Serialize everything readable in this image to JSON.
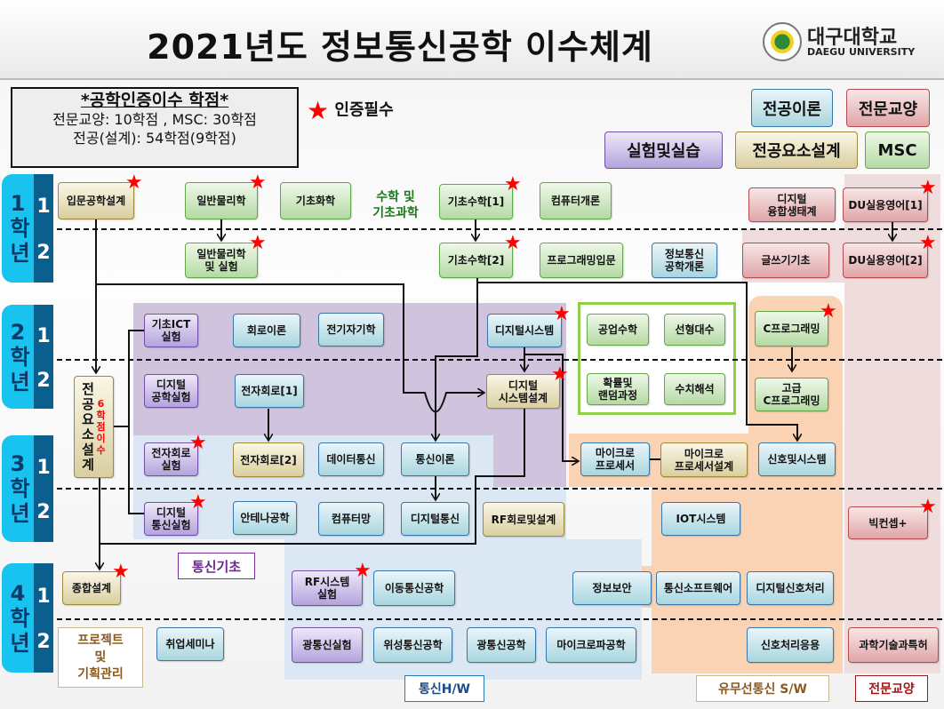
{
  "title": "2021년도 정보통신공학 이수체계",
  "logo": {
    "name_ko": "대구대학교",
    "name_en": "DAEGU UNIVERSITY"
  },
  "credits": {
    "heading": "*공학인증이수 학점*",
    "line1": "전문교양: 10학점 , MSC: 30학점",
    "line2": "전공(설계): 54학점(9학점)"
  },
  "star_legend": {
    "icon": "red-star-icon",
    "label": "인증필수"
  },
  "legend": {
    "theory": "전공이론",
    "liberal": "전문교양",
    "lab": "실험및실습",
    "design": "전공요소설계",
    "msc": "MSC"
  },
  "colors": {
    "theory": "#a9d6de",
    "lab": "#b3a3dc",
    "design": "#d9cfa0",
    "msc": "#b5daa4",
    "liberal": "#dfa6a8",
    "star": "#ff0000",
    "year_bar": "#18c3f0",
    "semester_bar": "#0b5f8e"
  },
  "years": [
    {
      "year": "1",
      "unit": "학년",
      "semesters": [
        "1",
        "2"
      ]
    },
    {
      "year": "2",
      "unit": "학년",
      "semesters": [
        "1",
        "2"
      ]
    },
    {
      "year": "3",
      "unit": "학년",
      "semesters": [
        "1",
        "2"
      ]
    },
    {
      "year": "4",
      "unit": "학년",
      "semesters": [
        "1",
        "2"
      ]
    }
  ],
  "labels": {
    "math_science": "수학 및\n기초과학",
    "design_elements": "전공요소설계",
    "design_credits": "6학점이수",
    "comm_basics": "통신기초",
    "project": "프로젝트\n및\n기획관리",
    "comm_hw": "통신H/W",
    "comm_sw": "유무선통신 S/W",
    "liberal": "전문교양"
  },
  "courses": [
    {
      "label": "입문공학설계",
      "type": "design",
      "required": true
    },
    {
      "label": "일반물리학",
      "type": "msc",
      "required": true
    },
    {
      "label": "기초화학",
      "type": "msc",
      "required": false
    },
    {
      "label": "기초수학[1]",
      "type": "msc",
      "required": true
    },
    {
      "label": "컴퓨터개론",
      "type": "msc",
      "required": false
    },
    {
      "label": "디지털\n융합생태계",
      "type": "liberal",
      "required": false
    },
    {
      "label": "DU실용영어[1]",
      "type": "liberal",
      "required": true
    },
    {
      "label": "일반물리학\n및 실험",
      "type": "msc",
      "required": true
    },
    {
      "label": "기초수학[2]",
      "type": "msc",
      "required": true
    },
    {
      "label": "프로그래밍입문",
      "type": "msc",
      "required": false
    },
    {
      "label": "정보통신\n공학개론",
      "type": "theory",
      "required": false
    },
    {
      "label": "글쓰기기초",
      "type": "liberal",
      "required": false
    },
    {
      "label": "DU실용영어[2]",
      "type": "liberal",
      "required": true
    },
    {
      "label": "기초ICT\n실험",
      "type": "lab",
      "required": false
    },
    {
      "label": "회로이론",
      "type": "theory",
      "required": false
    },
    {
      "label": "전기자기학",
      "type": "theory",
      "required": false
    },
    {
      "label": "디지털시스템",
      "type": "theory",
      "required": true
    },
    {
      "label": "공업수학",
      "type": "msc",
      "required": false
    },
    {
      "label": "선형대수",
      "type": "msc",
      "required": false
    },
    {
      "label": "C프로그래밍",
      "type": "msc",
      "required": true
    },
    {
      "label": "디지털\n공학실험",
      "type": "lab",
      "required": false
    },
    {
      "label": "전자회로[1]",
      "type": "theory",
      "required": false
    },
    {
      "label": "디지털\n시스템설계",
      "type": "design",
      "required": true
    },
    {
      "label": "확률및\n랜덤과정",
      "type": "msc",
      "required": false
    },
    {
      "label": "수치해석",
      "type": "msc",
      "required": false
    },
    {
      "label": "고급\nC프로그래밍",
      "type": "msc",
      "required": false
    },
    {
      "label": "전자회로\n실험",
      "type": "lab",
      "required": true
    },
    {
      "label": "전자회로[2]",
      "type": "design",
      "required": false
    },
    {
      "label": "데이터통신",
      "type": "theory",
      "required": false
    },
    {
      "label": "통신이론",
      "type": "theory",
      "required": false
    },
    {
      "label": "마이크로\n프로세서",
      "type": "theory",
      "required": false
    },
    {
      "label": "마이크로\n프로세서설계",
      "type": "design",
      "required": false
    },
    {
      "label": "신호및시스템",
      "type": "theory",
      "required": false
    },
    {
      "label": "디지털\n통신실험",
      "type": "lab",
      "required": true
    },
    {
      "label": "안테나공학",
      "type": "theory",
      "required": false
    },
    {
      "label": "컴퓨터망",
      "type": "theory",
      "required": false
    },
    {
      "label": "디지털통신",
      "type": "theory",
      "required": false
    },
    {
      "label": "RF회로및설계",
      "type": "design",
      "required": false
    },
    {
      "label": "IOT시스템",
      "type": "theory",
      "required": false
    },
    {
      "label": "빅컨셉+",
      "type": "liberal",
      "required": true
    },
    {
      "label": "종합설계",
      "type": "design",
      "required": true
    },
    {
      "label": "RF시스템\n실험",
      "type": "lab",
      "required": true
    },
    {
      "label": "이동통신공학",
      "type": "theory",
      "required": false
    },
    {
      "label": "정보보안",
      "type": "theory",
      "required": false
    },
    {
      "label": "통신소프트웨어",
      "type": "theory",
      "required": false
    },
    {
      "label": "디지털신호처리",
      "type": "theory",
      "required": false
    },
    {
      "label": "취업세미나",
      "type": "theory",
      "required": false
    },
    {
      "label": "광통신실험",
      "type": "lab",
      "required": false
    },
    {
      "label": "위성통신공학",
      "type": "theory",
      "required": false
    },
    {
      "label": "광통신공학",
      "type": "theory",
      "required": false
    },
    {
      "label": "마이크로파공학",
      "type": "theory",
      "required": false
    },
    {
      "label": "신호처리응용",
      "type": "theory",
      "required": false
    },
    {
      "label": "과학기술과특허",
      "type": "liberal",
      "required": false
    }
  ]
}
